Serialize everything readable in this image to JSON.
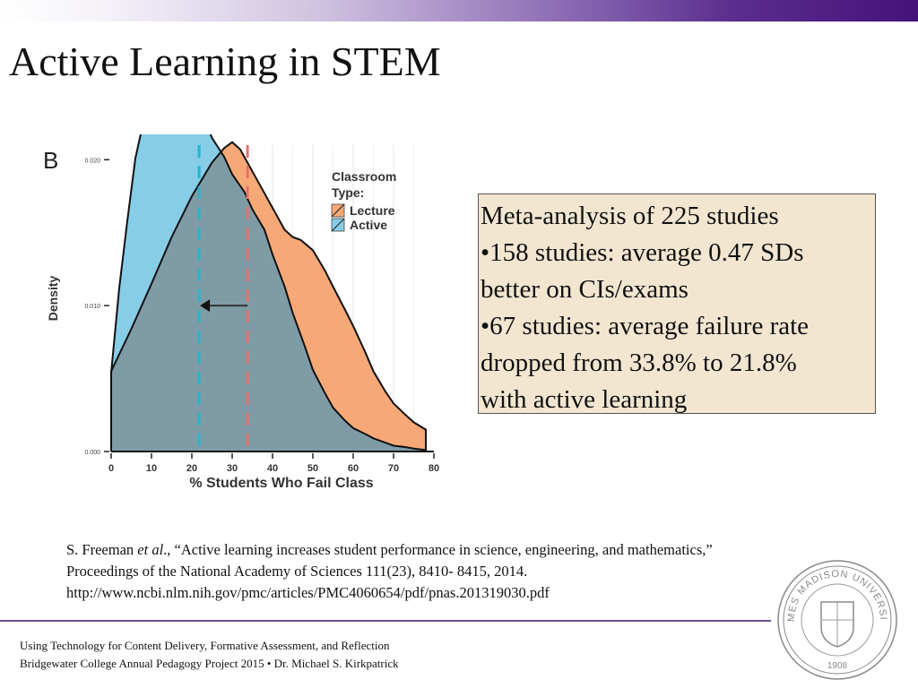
{
  "slide": {
    "title": "Active Learning in STEM"
  },
  "callout": {
    "lines": [
      "Meta-analysis of 225 studies",
      "•158 studies: average 0.47 SDs",
      "better on CIs/exams",
      "•67 studies: average failure rate",
      "dropped from 33.8% to 21.8%",
      "with active learning"
    ]
  },
  "citation": {
    "line1_pre": "S. Freeman ",
    "line1_em": "et al",
    "line1_post": "., “Active learning increases student performance in science, engineering, and mathematics,”",
    "line2": "Proceedings of the National Academy of Sciences 111(23), 8410- 8415, 2014.",
    "line3": "http://www.ncbi.nlm.nih.gov/pmc/articles/PMC4060654/pdf/pnas.201319030.pdf"
  },
  "footer": {
    "line1": "Using Technology for Content Delivery, Formative Assessment, and Reflection",
    "line2": "Bridgewater College Annual Pedagogy Project 2015 • Dr. Michael S. Kirkpatrick"
  },
  "logo": {
    "text_top": "JAMES MADISON UNIVERSITY",
    "year": "1908"
  },
  "chart_data": {
    "type": "area",
    "panel_label": "B",
    "xlabel": "% Students Who Fail Class",
    "ylabel": "Density",
    "xlim": [
      0,
      80
    ],
    "ylim": [
      0,
      0.021
    ],
    "x_ticks": [
      0,
      10,
      20,
      30,
      40,
      50,
      60,
      70,
      80
    ],
    "y_ticks": [
      0,
      0.01,
      0.02
    ],
    "y_tick_labels": [
      "0.000",
      "0.010",
      "0.020"
    ],
    "grid": true,
    "legend": {
      "title_line1": "Classroom",
      "title_line2": "Type:",
      "position": "top-right"
    },
    "series": [
      {
        "name": "Lecture",
        "color": "#f6a877",
        "mean": 33.8,
        "x": [
          0,
          5,
          10,
          15,
          20,
          25,
          28,
          30,
          32,
          35,
          38,
          40,
          43,
          45,
          47,
          50,
          53,
          55,
          58,
          60,
          63,
          65,
          68,
          70,
          73,
          75,
          78
        ],
        "y": [
          0.0055,
          0.0084,
          0.0115,
          0.0147,
          0.0175,
          0.0198,
          0.0208,
          0.0212,
          0.0207,
          0.0192,
          0.0177,
          0.0167,
          0.0152,
          0.0147,
          0.0145,
          0.0138,
          0.0124,
          0.0113,
          0.0097,
          0.0086,
          0.0068,
          0.0055,
          0.0041,
          0.0033,
          0.0025,
          0.002,
          0.0015
        ]
      },
      {
        "name": "Active",
        "color": "#87cde8",
        "mean": 21.8,
        "x": [
          0,
          2,
          4,
          6,
          8,
          10,
          12,
          15,
          17,
          20,
          23,
          25,
          28,
          30,
          33,
          35,
          38,
          40,
          43,
          45,
          48,
          50,
          53,
          55,
          58,
          60,
          63,
          65,
          68,
          70,
          73,
          75,
          78
        ],
        "y": [
          0.0054,
          0.0112,
          0.0158,
          0.0201,
          0.0226,
          0.0236,
          0.024,
          0.024,
          0.0246,
          0.0242,
          0.0228,
          0.0215,
          0.0202,
          0.019,
          0.0178,
          0.0166,
          0.0152,
          0.0135,
          0.0113,
          0.0095,
          0.0072,
          0.0056,
          0.004,
          0.003,
          0.0021,
          0.0016,
          0.0012,
          0.0009,
          0.0006,
          0.0004,
          0.0003,
          0.0002,
          0.0001
        ]
      }
    ],
    "annotation": "arrow from Lecture mean to Active mean"
  }
}
